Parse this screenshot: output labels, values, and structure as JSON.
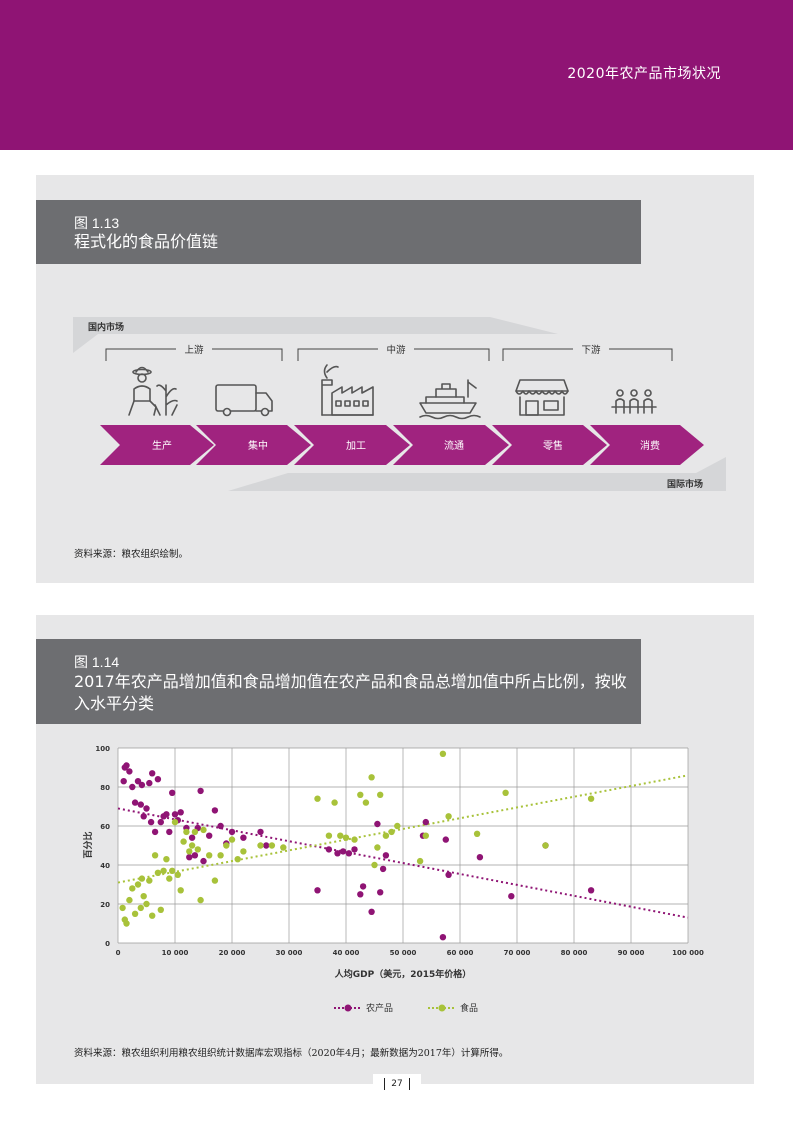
{
  "header": {
    "title": "2020年农产品市场状况"
  },
  "figure13": {
    "number": "图 1.13",
    "title": "程式化的食品价值链",
    "domestic_label": "国内市场",
    "international_label": "国际市场",
    "groups": [
      "上游",
      "中游",
      "下游"
    ],
    "stages": [
      "生产",
      "集中",
      "加工",
      "流通",
      "零售",
      "消费"
    ],
    "icons": [
      "farmer-icon",
      "truck-icon",
      "factory-icon",
      "ship-icon",
      "store-icon",
      "dining-icon"
    ],
    "source": "资料来源：粮农组织绘制。"
  },
  "figure14": {
    "number": "图 1.14",
    "title": "2017年农产品增加值和食品增加值在农产品和食品总增加值中所占比例，按收入水平分类",
    "source": "资料来源：粮农组织利用粮农组织统计数据库宏观指标（2020年4月；最新数据为2017年）计算所得。"
  },
  "page": {
    "number": "27"
  },
  "colors": {
    "brand": "#8f1474",
    "agri": "#8f1474",
    "food": "#a8c23a",
    "panel": "#e7e7e8",
    "titlebar": "#6d6e71"
  },
  "chart_data": {
    "type": "scatter",
    "xlabel": "人均GDP（美元，2015年价格）",
    "ylabel": "百分比",
    "xlim": [
      0,
      100000
    ],
    "ylim": [
      0,
      100
    ],
    "x_ticks": [
      "0",
      "10 000",
      "20 000",
      "30 000",
      "40 000",
      "50 000",
      "60 000",
      "70 000",
      "80 000",
      "90 000",
      "100 000"
    ],
    "y_ticks": [
      "0",
      "20",
      "40",
      "60",
      "80",
      "100"
    ],
    "grid": true,
    "legend": "bottom-center",
    "series": [
      {
        "name": "农产品",
        "color": "#8f1474",
        "trend": [
          [
            0,
            69
          ],
          [
            100000,
            13
          ]
        ],
        "points": [
          [
            1000,
            83
          ],
          [
            1200,
            90
          ],
          [
            1500,
            91
          ],
          [
            2000,
            88
          ],
          [
            2500,
            80
          ],
          [
            3000,
            72
          ],
          [
            3500,
            83
          ],
          [
            4000,
            71
          ],
          [
            4200,
            81
          ],
          [
            4500,
            65
          ],
          [
            5000,
            69
          ],
          [
            5500,
            82
          ],
          [
            6000,
            87
          ],
          [
            5800,
            62
          ],
          [
            6500,
            57
          ],
          [
            7000,
            84
          ],
          [
            7500,
            62
          ],
          [
            8000,
            65
          ],
          [
            8500,
            66
          ],
          [
            9000,
            57
          ],
          [
            9500,
            77
          ],
          [
            10000,
            66
          ],
          [
            10500,
            63
          ],
          [
            11000,
            67
          ],
          [
            12000,
            59
          ],
          [
            12500,
            44
          ],
          [
            13000,
            54
          ],
          [
            13500,
            45
          ],
          [
            14000,
            59
          ],
          [
            14500,
            78
          ],
          [
            15000,
            42
          ],
          [
            16000,
            55
          ],
          [
            17000,
            68
          ],
          [
            18000,
            60
          ],
          [
            19000,
            51
          ],
          [
            20000,
            57
          ],
          [
            22000,
            54
          ],
          [
            25000,
            57
          ],
          [
            26000,
            50
          ],
          [
            35000,
            27
          ],
          [
            37000,
            48
          ],
          [
            38500,
            46
          ],
          [
            39500,
            47
          ],
          [
            40500,
            46
          ],
          [
            41500,
            48
          ],
          [
            42500,
            25
          ],
          [
            43000,
            29
          ],
          [
            44500,
            16
          ],
          [
            45500,
            61
          ],
          [
            46000,
            26
          ],
          [
            46500,
            38
          ],
          [
            47000,
            45
          ],
          [
            53500,
            55
          ],
          [
            54000,
            62
          ],
          [
            57000,
            3
          ],
          [
            57500,
            53
          ],
          [
            58000,
            35
          ],
          [
            63500,
            44
          ],
          [
            69000,
            24
          ],
          [
            75000,
            50
          ],
          [
            83000,
            27
          ]
        ]
      },
      {
        "name": "食品",
        "color": "#a8c23a",
        "trend": [
          [
            0,
            31
          ],
          [
            100000,
            86
          ]
        ],
        "points": [
          [
            800,
            18
          ],
          [
            1200,
            12
          ],
          [
            1500,
            10
          ],
          [
            2000,
            22
          ],
          [
            2500,
            28
          ],
          [
            3000,
            15
          ],
          [
            3500,
            30
          ],
          [
            4000,
            18
          ],
          [
            4200,
            33
          ],
          [
            4500,
            24
          ],
          [
            5000,
            20
          ],
          [
            5500,
            32
          ],
          [
            6000,
            14
          ],
          [
            6500,
            45
          ],
          [
            7000,
            36
          ],
          [
            7500,
            17
          ],
          [
            8000,
            37
          ],
          [
            8500,
            43
          ],
          [
            9000,
            33
          ],
          [
            9500,
            37
          ],
          [
            10000,
            62
          ],
          [
            10500,
            35
          ],
          [
            11000,
            27
          ],
          [
            11500,
            52
          ],
          [
            12000,
            57
          ],
          [
            12500,
            47
          ],
          [
            13000,
            50
          ],
          [
            13500,
            57
          ],
          [
            14000,
            48
          ],
          [
            14500,
            22
          ],
          [
            15000,
            58
          ],
          [
            16000,
            45
          ],
          [
            17000,
            32
          ],
          [
            18000,
            45
          ],
          [
            19000,
            50
          ],
          [
            20000,
            53
          ],
          [
            21000,
            43
          ],
          [
            22000,
            47
          ],
          [
            25000,
            50
          ],
          [
            27000,
            50
          ],
          [
            29000,
            49
          ],
          [
            35000,
            74
          ],
          [
            37000,
            55
          ],
          [
            38000,
            72
          ],
          [
            39000,
            55
          ],
          [
            40000,
            54
          ],
          [
            41500,
            53
          ],
          [
            42500,
            76
          ],
          [
            43500,
            72
          ],
          [
            44500,
            85
          ],
          [
            45000,
            40
          ],
          [
            45500,
            49
          ],
          [
            46000,
            76
          ],
          [
            47000,
            55
          ],
          [
            48000,
            57
          ],
          [
            49000,
            60
          ],
          [
            53000,
            42
          ],
          [
            54000,
            55
          ],
          [
            57000,
            97
          ],
          [
            58000,
            65
          ],
          [
            63000,
            56
          ],
          [
            68000,
            77
          ],
          [
            75000,
            50
          ],
          [
            83000,
            74
          ]
        ]
      }
    ]
  }
}
